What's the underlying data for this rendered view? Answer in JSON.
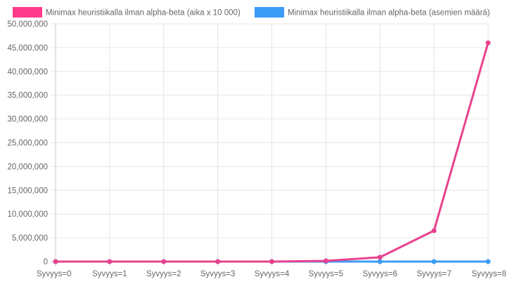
{
  "chart_data": {
    "type": "line",
    "categories": [
      "Syvyys=0",
      "Syvyys=1",
      "Syvyys=2",
      "Syvyys=3",
      "Syvyys=4",
      "Syvyys=5",
      "Syvyys=6",
      "Syvyys=7",
      "Syvyys=8"
    ],
    "series": [
      {
        "name": "Minimax heuristiikalla ilman alpha-beta (aika x 10 000)",
        "color": "#ff3c8c",
        "line_color": "#e8428f",
        "values": [
          0,
          0,
          0,
          0,
          0,
          150000,
          900000,
          6500000,
          46000000
        ]
      },
      {
        "name": "Minimax heuristiikalla ilman alpha-beta (asemien määrä)",
        "color": "#3c9cf5",
        "values": [
          0,
          0,
          0,
          0,
          0,
          0,
          0,
          0,
          0
        ]
      }
    ],
    "ylim": [
      0,
      50000000
    ],
    "yticks": [
      "0",
      "5,000,000",
      "10,000,000",
      "15,000,000",
      "20,000,000",
      "25,000,000",
      "30,000,000",
      "35,000,000",
      "40,000,000",
      "45,000,000",
      "50,000,000"
    ],
    "grid": true,
    "legend_position": "top"
  }
}
